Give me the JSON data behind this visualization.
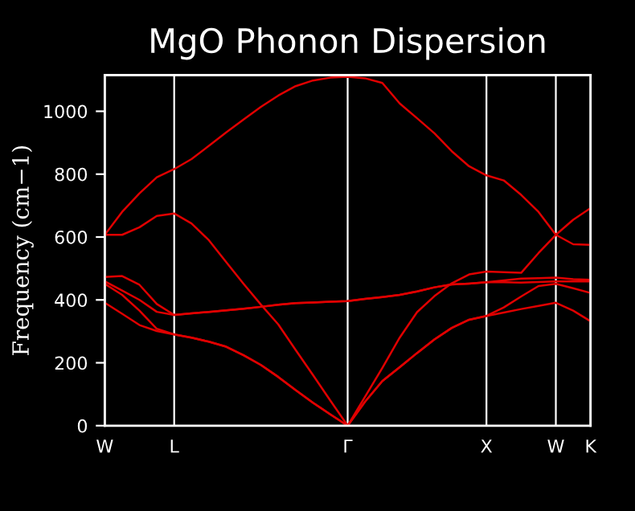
{
  "chart_data": {
    "type": "line",
    "title": "MgO Phonon Dispersion",
    "ylabel": "Frequency (cm−1)",
    "categories": [
      "W",
      null,
      null,
      null,
      "L",
      null,
      null,
      null,
      null,
      null,
      null,
      null,
      null,
      null,
      "Γ",
      null,
      null,
      null,
      null,
      null,
      null,
      null,
      "X",
      null,
      null,
      null,
      "W",
      null,
      "K"
    ],
    "ylim": [
      0,
      1115
    ],
    "yticks": [
      0,
      200,
      400,
      600,
      800,
      1000
    ],
    "grid": "x",
    "marker": "none",
    "line_style": "solid",
    "series": [
      {
        "color": "#e00000",
        "values": [
          607,
          680,
          739,
          790,
          816,
          848,
          890,
          933,
          974,
          1014,
          1050,
          1080,
          1098,
          1107,
          1110,
          1105,
          1090,
          1025,
          978,
          930,
          873,
          825,
          796,
          780,
          734,
          680,
          607,
          655,
          692
        ]
      },
      {
        "color": "#e00000",
        "values": [
          607,
          607,
          631,
          667,
          675,
          643,
          590,
          520,
          451,
          385,
          322,
          241,
          161,
          80,
          0,
          92,
          184,
          280,
          361,
          412,
          453,
          481,
          490,
          488,
          486,
          549,
          607,
          577,
          575
        ]
      },
      {
        "color": "#e00000",
        "values": [
          473,
          476,
          448,
          387,
          352,
          357,
          362,
          367,
          372,
          378,
          385,
          390,
          392,
          394,
          396,
          403,
          409,
          416,
          427,
          440,
          449,
          452,
          456,
          462,
          468,
          469,
          471,
          466,
          464
        ]
      },
      {
        "color": "#e00000",
        "values": [
          459,
          430,
          400,
          362,
          352,
          357,
          362,
          367,
          372,
          378,
          385,
          390,
          392,
          394,
          396,
          403,
          409,
          416,
          427,
          440,
          449,
          452,
          456,
          456,
          455,
          457,
          459,
          459,
          459
        ]
      },
      {
        "color": "#e00000",
        "values": [
          451,
          416,
          366,
          308,
          290,
          280,
          267,
          251,
          224,
          193,
          155,
          113,
          73,
          36,
          0,
          76,
          142,
          186,
          231,
          274,
          311,
          337,
          349,
          376,
          411,
          444,
          451,
          437,
          422
        ]
      },
      {
        "color": "#e00000",
        "values": [
          391,
          356,
          320,
          301,
          290,
          280,
          267,
          251,
          224,
          193,
          155,
          113,
          73,
          36,
          0,
          76,
          142,
          186,
          231,
          274,
          311,
          337,
          349,
          360,
          371,
          381,
          391,
          366,
          332
        ]
      }
    ]
  }
}
